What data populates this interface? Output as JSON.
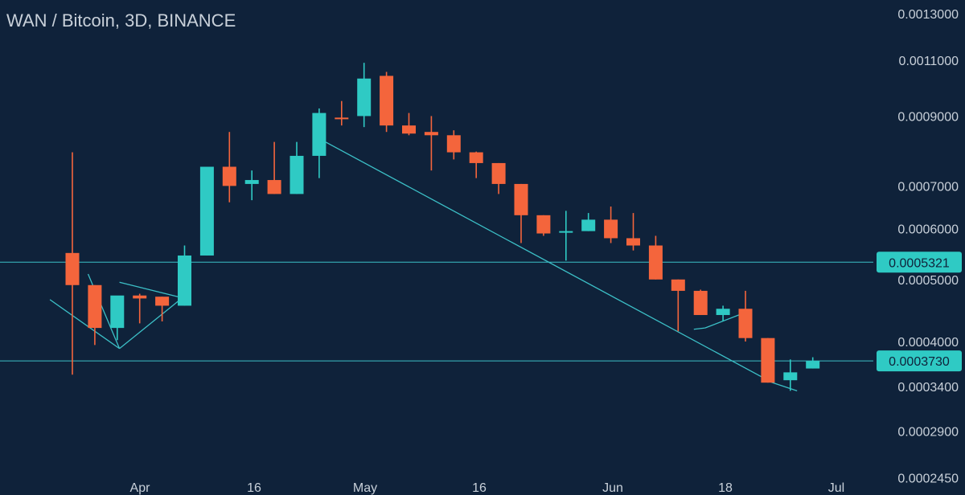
{
  "chart_data": {
    "type": "candlestick",
    "title": "WAN / Bitcoin, 3D, BINANCE",
    "scale": "log",
    "ylim": [
      0.00024,
      0.0013
    ],
    "grid": false,
    "colors": {
      "background": "#0f223a",
      "up": "#2fcac4",
      "down": "#f4653c",
      "line": "#3cc0c7",
      "text": "#c8d0d9"
    },
    "y_ticks": [
      "0.0013000",
      "0.0011000",
      "0.0009000",
      "0.0007000",
      "0.0006000",
      "0.0005000",
      "0.0004000",
      "0.0003400",
      "0.0002900",
      "0.0002450"
    ],
    "x_ticks": [
      "Apr",
      "16",
      "May",
      "16",
      "Jun",
      "18",
      "Jul"
    ],
    "candles": [
      {
        "o": 0.00055,
        "h": 0.00079,
        "l": 0.000355,
        "c": 0.00049
      },
      {
        "o": 0.00049,
        "h": 0.00049,
        "l": 0.000395,
        "c": 0.00042
      },
      {
        "o": 0.00042,
        "h": 0.000465,
        "l": 0.000402,
        "c": 0.000472
      },
      {
        "o": 0.000472,
        "h": 0.000475,
        "l": 0.000427,
        "c": 0.000467
      },
      {
        "o": 0.00047,
        "h": 0.00047,
        "l": 0.00043,
        "c": 0.000455
      },
      {
        "o": 0.000455,
        "h": 0.000565,
        "l": 0.000455,
        "c": 0.000545
      },
      {
        "o": 0.000545,
        "h": 0.000745,
        "l": 0.000545,
        "c": 0.00075
      },
      {
        "o": 0.00075,
        "h": 0.00085,
        "l": 0.00066,
        "c": 0.0007
      },
      {
        "o": 0.000705,
        "h": 0.00074,
        "l": 0.000665,
        "c": 0.000715
      },
      {
        "o": 0.000715,
        "h": 0.00082,
        "l": 0.00068,
        "c": 0.00068
      },
      {
        "o": 0.00068,
        "h": 0.00082,
        "l": 0.00068,
        "c": 0.00078
      },
      {
        "o": 0.00078,
        "h": 0.000925,
        "l": 0.00072,
        "c": 0.00091
      },
      {
        "o": 0.000895,
        "h": 0.00095,
        "l": 0.00087,
        "c": 0.000892
      },
      {
        "o": 0.0009,
        "h": 0.00109,
        "l": 0.000865,
        "c": 0.00103
      },
      {
        "o": 0.00104,
        "h": 0.001055,
        "l": 0.00085,
        "c": 0.00087
      },
      {
        "o": 0.00087,
        "h": 0.00091,
        "l": 0.00084,
        "c": 0.000845
      },
      {
        "o": 0.00085,
        "h": 0.0009,
        "l": 0.00074,
        "c": 0.00084
      },
      {
        "o": 0.00084,
        "h": 0.000855,
        "l": 0.00077,
        "c": 0.00079
      },
      {
        "o": 0.00079,
        "h": 0.000792,
        "l": 0.00072,
        "c": 0.00076
      },
      {
        "o": 0.00076,
        "h": 0.00076,
        "l": 0.00068,
        "c": 0.000705
      },
      {
        "o": 0.000705,
        "h": 0.000705,
        "l": 0.00057,
        "c": 0.00063
      },
      {
        "o": 0.00063,
        "h": 0.00063,
        "l": 0.000585,
        "c": 0.00059
      },
      {
        "o": 0.000595,
        "h": 0.00064,
        "l": 0.000535,
        "c": 0.000595
      },
      {
        "o": 0.000595,
        "h": 0.000635,
        "l": 0.000595,
        "c": 0.00062
      },
      {
        "o": 0.00062,
        "h": 0.00065,
        "l": 0.00057,
        "c": 0.00058
      },
      {
        "o": 0.00058,
        "h": 0.000635,
        "l": 0.000555,
        "c": 0.000565
      },
      {
        "o": 0.000565,
        "h": 0.000585,
        "l": 0.0005,
        "c": 0.0005
      },
      {
        "o": 0.0005,
        "h": 0.0005,
        "l": 0.000415,
        "c": 0.00048
      },
      {
        "o": 0.00048,
        "h": 0.000482,
        "l": 0.00044,
        "c": 0.00044
      },
      {
        "o": 0.00044,
        "h": 0.000455,
        "l": 0.00043,
        "c": 0.00045
      },
      {
        "o": 0.00045,
        "h": 0.00048,
        "l": 0.0004,
        "c": 0.000405
      },
      {
        "o": 0.000405,
        "h": 0.000405,
        "l": 0.000345,
        "c": 0.000345
      },
      {
        "o": 0.000348,
        "h": 0.000375,
        "l": 0.000335,
        "c": 0.000358
      },
      {
        "o": 0.000363,
        "h": 0.000378,
        "l": 0.000363,
        "c": 0.000373
      }
    ],
    "horizontal_lines": [
      {
        "value": 0.0005321,
        "label": "0.0005321"
      },
      {
        "value": 0.000373,
        "label": "0.0003730"
      }
    ],
    "trendlines": [
      {
        "from": [
          -1.0,
          0.000465
        ],
        "to": [
          2.1,
          0.00039
        ]
      },
      {
        "from": [
          2.1,
          0.00039
        ],
        "to": [
          4.9,
          0.000468
        ]
      },
      {
        "from": [
          0.7,
          0.00051
        ],
        "to": [
          2.1,
          0.00039
        ]
      },
      {
        "from": [
          2.1,
          0.000495
        ],
        "to": [
          4.9,
          0.000468
        ]
      },
      {
        "from": [
          11.0,
          0.00083
        ],
        "to": [
          31.2,
          0.000345
        ]
      },
      {
        "from": [
          31.2,
          0.000345
        ],
        "to": [
          32.3,
          0.000335
        ]
      },
      {
        "from": [
          27.7,
          0.000418
        ],
        "to": [
          28.2,
          0.00042
        ]
      },
      {
        "from": [
          28.2,
          0.00042
        ],
        "to": [
          29.7,
          0.00044
        ]
      }
    ]
  }
}
